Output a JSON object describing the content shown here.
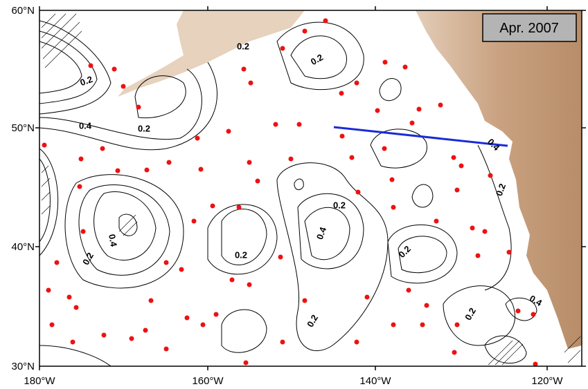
{
  "date_label": "Apr. 2007",
  "lat_labels": [
    "60°N",
    "50°N",
    "40°N",
    "30°N"
  ],
  "lon_labels": [
    "180°W",
    "160°W",
    "140°W",
    "120°W"
  ],
  "contour_labels": [
    "0.2",
    "0.4",
    "0.2",
    "0.2",
    "0.2",
    "0.4",
    "0.2",
    "0.2",
    "0.4",
    "0.2",
    "0.4",
    "0.2",
    "0.2",
    "0.2",
    "0.2",
    "0.4"
  ]
}
